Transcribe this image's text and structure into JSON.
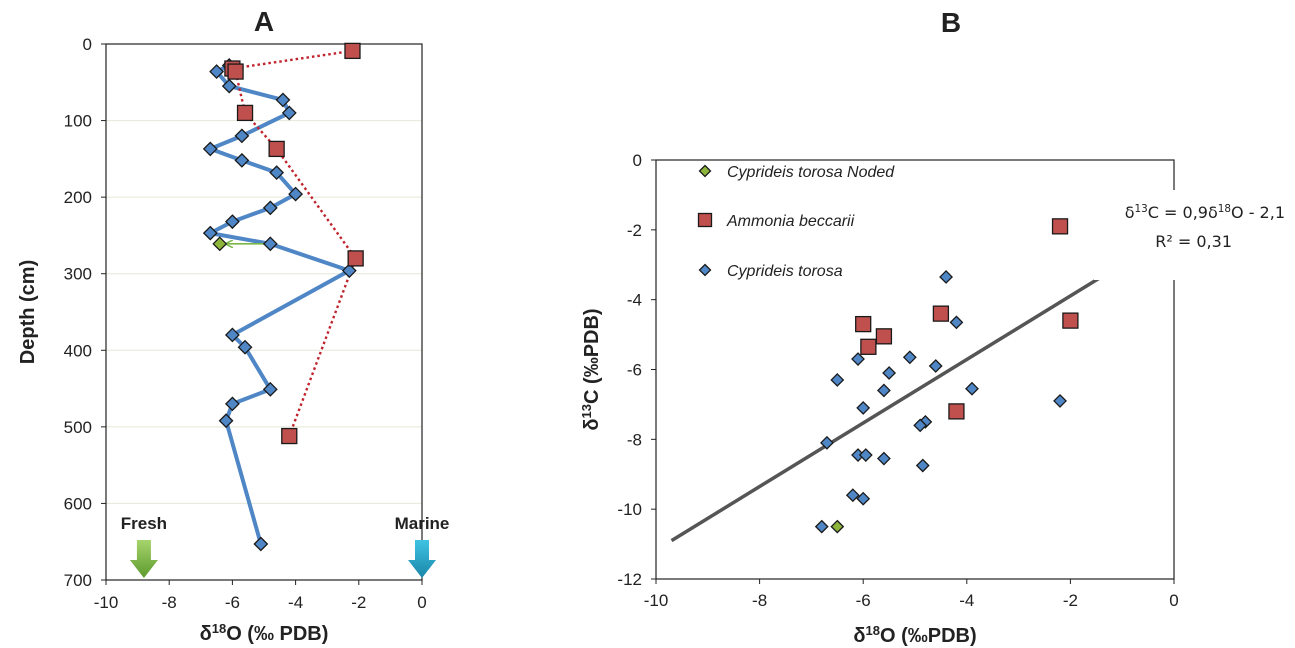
{
  "chart_data": [
    {
      "panel": "A",
      "type": "line",
      "panel_label": "A",
      "xlabel": "δ18O (‰ PDB)",
      "ylabel": "Depth (cm)",
      "xlim": [
        -10,
        0
      ],
      "ylim": [
        0,
        700
      ],
      "y_inverted": true,
      "xticks": [
        "-10",
        "-8",
        "-6",
        "-4",
        "-2",
        "0"
      ],
      "yticks": [
        "0",
        "100",
        "200",
        "300",
        "400",
        "500",
        "600",
        "700"
      ],
      "grid": "horizontal",
      "series": [
        {
          "marker": "diamond",
          "color": "#4f86c6",
          "line_color": "#4f86c6",
          "line": "solid",
          "points": [
            [
              -6.1,
              28
            ],
            [
              -6.5,
              36
            ],
            [
              -6.1,
              55
            ],
            [
              -4.4,
              73
            ],
            [
              -4.2,
              90
            ],
            [
              -5.7,
              120
            ],
            [
              -6.7,
              137
            ],
            [
              -5.7,
              152
            ],
            [
              -4.6,
              168
            ],
            [
              -4,
              196
            ],
            [
              -4.8,
              214
            ],
            [
              -6,
              232
            ],
            [
              -6.7,
              247
            ],
            [
              -4.8,
              261
            ],
            [
              -2.3,
              296
            ],
            [
              -6,
              380
            ],
            [
              -5.6,
              396
            ],
            [
              -4.8,
              451
            ],
            [
              -6,
              470
            ],
            [
              -6.2,
              492
            ],
            [
              -5.1,
              653
            ]
          ]
        },
        {
          "marker": "square",
          "color": "#c0504d",
          "line_color": "#c0232b",
          "line": "dotted",
          "points": [
            [
              -2.2,
              9
            ],
            [
              -6,
              32
            ],
            [
              -5.9,
              36
            ],
            [
              -5.6,
              90
            ],
            [
              -4.6,
              137
            ],
            [
              -2.1,
              280
            ],
            [
              -4.2,
              512
            ]
          ]
        },
        {
          "marker": "diamond",
          "color": "#8db53c",
          "line": "none",
          "points": [
            [
              -6.4,
              261
            ]
          ]
        }
      ],
      "annotations": [
        {
          "type": "arrow",
          "color": "#7ab648",
          "from": [
            -4.9,
            261
          ],
          "to": [
            -6.2,
            261
          ]
        }
      ],
      "markers": [
        {
          "label": "Fresh",
          "x": -8.8,
          "color": "#7ab648"
        },
        {
          "label": "Marine",
          "x": 0,
          "color": "#2aa6c8"
        }
      ]
    },
    {
      "panel": "B",
      "type": "scatter",
      "panel_label": "B",
      "xlabel": "δ18O (‰PDB)",
      "ylabel": "δ13C (‰PDB)",
      "xlim": [
        -10,
        0
      ],
      "ylim": [
        -12,
        0
      ],
      "xticks": [
        "-10",
        "-8",
        "-6",
        "-4",
        "-2",
        "0"
      ],
      "yticks": [
        "0",
        "-2",
        "-4",
        "-6",
        "-8",
        "-10",
        "-12"
      ],
      "grid": false,
      "series": [
        {
          "name": "Cyprideis torosa Noded",
          "marker": "diamond",
          "color": "#8db53c",
          "points": [
            [
              -6.5,
              -10.5
            ]
          ]
        },
        {
          "name": "Ammonia beccarii",
          "marker": "square",
          "color": "#c0504d",
          "points": [
            [
              -2.2,
              -1.9
            ],
            [
              -4.5,
              -4.4
            ],
            [
              -6,
              -4.7
            ],
            [
              -5.6,
              -5.05
            ],
            [
              -5.9,
              -5.35
            ],
            [
              -2,
              -4.6
            ],
            [
              -4.2,
              -7.2
            ]
          ]
        },
        {
          "name": "Cyprideis torosa",
          "marker": "diamond",
          "color": "#4f86c6",
          "points": [
            [
              -4.4,
              -3.35
            ],
            [
              -4.2,
              -4.65
            ],
            [
              -6.1,
              -5.7
            ],
            [
              -5.1,
              -5.65
            ],
            [
              -5.5,
              -6.1
            ],
            [
              -4.6,
              -5.9
            ],
            [
              -6.5,
              -6.3
            ],
            [
              -5.6,
              -6.6
            ],
            [
              -3.9,
              -6.55
            ],
            [
              -6,
              -7.1
            ],
            [
              -2.2,
              -6.9
            ],
            [
              -4.8,
              -7.5
            ],
            [
              -4.9,
              -7.6
            ],
            [
              -6.7,
              -8.1
            ],
            [
              -6.1,
              -8.45
            ],
            [
              -5.95,
              -8.45
            ],
            [
              -5.6,
              -8.55
            ],
            [
              -4.85,
              -8.75
            ],
            [
              -6.2,
              -9.6
            ],
            [
              -6,
              -9.7
            ],
            [
              -6.8,
              -10.5
            ]
          ]
        }
      ],
      "trendline": {
        "x": [
          -9.7,
          -0.8
        ],
        "y": [
          -10.9,
          -2.8
        ],
        "color": "#555555"
      },
      "equation": "δ13C = 0,9δ18O - 2,1",
      "r_squared": "R² = 0,31",
      "legend": "top-left"
    }
  ]
}
